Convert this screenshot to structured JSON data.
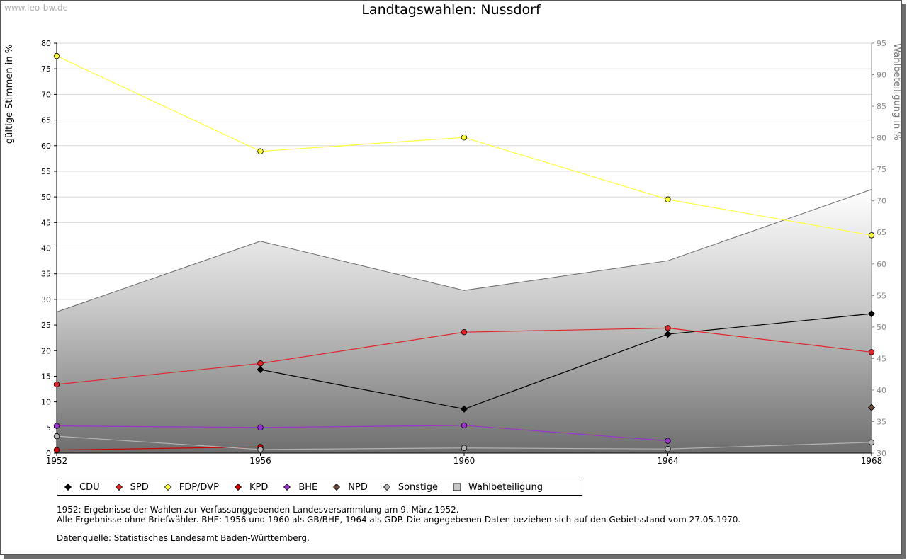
{
  "watermark": "www.leo-bw.de",
  "chart_data": {
    "type": "line",
    "title": "Landtagswahlen: Nussdorf",
    "ylabel": "gültige Stimmen in %",
    "ylabel_right": "Wahlbeteiligung in %",
    "x": [
      1952,
      1956,
      1960,
      1964,
      1968
    ],
    "ylim": [
      0,
      80
    ],
    "ylim_right": [
      30,
      95
    ],
    "yticks": [
      0,
      5,
      10,
      15,
      20,
      25,
      30,
      35,
      40,
      45,
      50,
      55,
      60,
      65,
      70,
      75,
      80
    ],
    "yticks_right": [
      30,
      35,
      40,
      45,
      50,
      55,
      60,
      65,
      70,
      75,
      80,
      85,
      90,
      95
    ],
    "grid": true,
    "legend_position": "bottom",
    "series": [
      {
        "name": "CDU",
        "color": "#000000",
        "values": [
          null,
          16.3,
          8.6,
          23.2,
          27.2
        ]
      },
      {
        "name": "SPD",
        "color": "#e0262b",
        "values": [
          13.4,
          17.5,
          23.6,
          24.4,
          19.7
        ]
      },
      {
        "name": "FDP/DVP",
        "color": "#ffff3c",
        "values": [
          77.5,
          58.9,
          61.6,
          49.5,
          42.5
        ]
      },
      {
        "name": "KPD",
        "color": "#cc0000",
        "values": [
          0.6,
          1.2,
          null,
          null,
          null
        ]
      },
      {
        "name": "BHE",
        "color": "#9933cc",
        "values": [
          5.3,
          5.0,
          5.4,
          2.4,
          null
        ]
      },
      {
        "name": "NPD",
        "color": "#6b4a3a",
        "values": [
          null,
          null,
          null,
          null,
          8.9
        ]
      },
      {
        "name": "Sonstige",
        "color": "#b4b4b4",
        "values": [
          3.3,
          0.7,
          1.0,
          0.8,
          2.1
        ]
      },
      {
        "name": "Wahlbeteiligung",
        "color": "#888888",
        "axis": "right",
        "type": "area",
        "values": [
          52.4,
          63.6,
          55.8,
          60.5,
          71.8
        ]
      }
    ]
  },
  "notes": {
    "line1": "1952: Ergebnisse der Wahlen zur Verfassunggebenden Landesversammlung am 9. März 1952.",
    "line2": "Alle Ergebnisse ohne Briefwähler. BHE: 1956 und 1960 als GB/BHE, 1964 als GDP. Die angegebenen Daten beziehen sich auf den Gebietsstand vom 27.05.1970.",
    "source": "Datenquelle: Statistisches Landesamt Baden-Württemberg."
  }
}
